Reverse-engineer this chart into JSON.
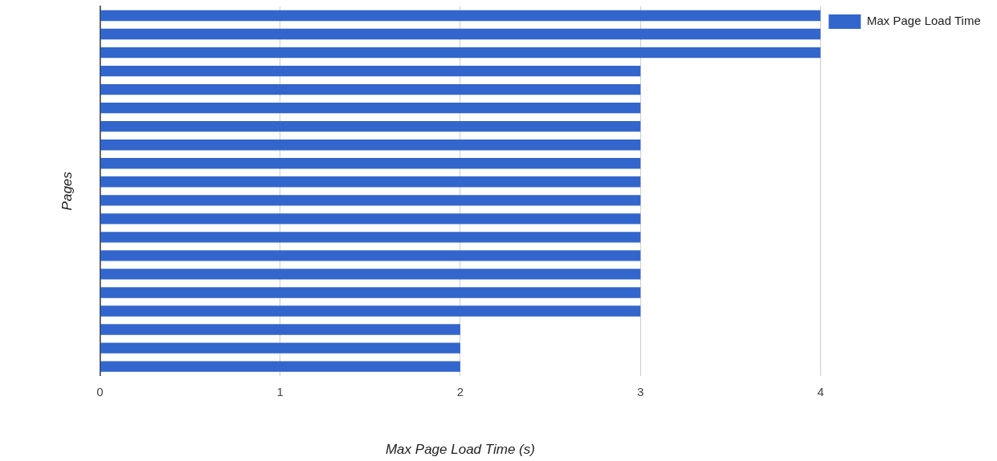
{
  "chart_data": {
    "type": "bar",
    "orientation": "horizontal",
    "xlabel": "Max Page Load Time (s)",
    "ylabel": "Pages",
    "categories": [
      null,
      null,
      null,
      null,
      null,
      null,
      null,
      null,
      null,
      null,
      null,
      null,
      null,
      null,
      null,
      null,
      null,
      null,
      null,
      null
    ],
    "series": [
      {
        "name": "Max Page Load Time",
        "color": "#3366cc",
        "values": [
          4,
          4,
          4,
          3,
          3,
          3,
          3,
          3,
          3,
          3,
          3,
          3,
          3,
          3,
          3,
          3,
          3,
          2,
          2,
          2
        ]
      }
    ],
    "xlim": [
      0,
      4
    ],
    "xticks": [
      0,
      1,
      2,
      3,
      4
    ],
    "grid": "x",
    "legend": "top right"
  }
}
